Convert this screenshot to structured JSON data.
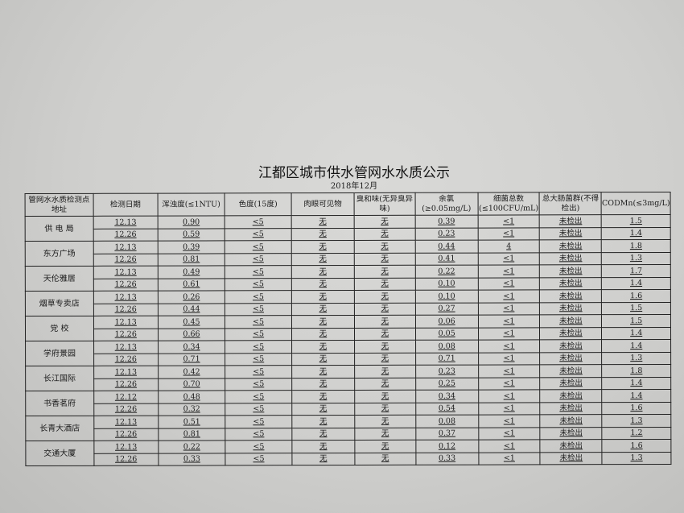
{
  "title": "江都区城市供水管网水水质公示",
  "subtitle": "2018年12月",
  "headers": [
    "管网水水质检测点地址",
    "检测日期",
    "浑浊度(≤1NTU)",
    "色度(15度)",
    "肉眼可见物",
    "臭和味(无异臭异味)",
    "余氯(≥0.05mg/L)",
    "细菌总数(≤100CFU/mL)",
    "总大肠菌群(不得检出)",
    "CODMn(≤3mg/L)"
  ],
  "sites": [
    {
      "name": "供 电 局",
      "rows": [
        [
          "12.13",
          "0.90",
          "<5",
          "无",
          "无",
          "0.39",
          "<1",
          "未检出",
          "1.5"
        ],
        [
          "12.26",
          "0.59",
          "<5",
          "无",
          "无",
          "0.23",
          "<1",
          "未检出",
          "1.4"
        ]
      ]
    },
    {
      "name": "东方广场",
      "rows": [
        [
          "12.13",
          "0.39",
          "<5",
          "无",
          "无",
          "0.44",
          "4",
          "未检出",
          "1.8"
        ],
        [
          "12.26",
          "0.81",
          "<5",
          "无",
          "无",
          "0.41",
          "<1",
          "未检出",
          "1.3"
        ]
      ]
    },
    {
      "name": "天伦雅居",
      "rows": [
        [
          "12.13",
          "0.49",
          "<5",
          "无",
          "无",
          "0.22",
          "<1",
          "未检出",
          "1.7"
        ],
        [
          "12.26",
          "0.61",
          "<5",
          "无",
          "无",
          "0.10",
          "<1",
          "未检出",
          "1.4"
        ]
      ]
    },
    {
      "name": "烟草专卖店",
      "rows": [
        [
          "12.13",
          "0.26",
          "<5",
          "无",
          "无",
          "0.10",
          "<1",
          "未检出",
          "1.6"
        ],
        [
          "12.26",
          "0.44",
          "<5",
          "无",
          "无",
          "0.27",
          "<1",
          "未检出",
          "1.5"
        ]
      ]
    },
    {
      "name": "党  校",
      "rows": [
        [
          "12.13",
          "0.45",
          "<5",
          "无",
          "无",
          "0.06",
          "<1",
          "未检出",
          "1.5"
        ],
        [
          "12.26",
          "0.66",
          "<5",
          "无",
          "无",
          "0.05",
          "<1",
          "未检出",
          "1.4"
        ]
      ]
    },
    {
      "name": "学府景园",
      "rows": [
        [
          "12.13",
          "0.34",
          "<5",
          "无",
          "无",
          "0.08",
          "<1",
          "未检出",
          "1.4"
        ],
        [
          "12.26",
          "0.71",
          "<5",
          "无",
          "无",
          "0.71",
          "<1",
          "未检出",
          "1.3"
        ]
      ]
    },
    {
      "name": "长江国际",
      "rows": [
        [
          "12.13",
          "0.42",
          "<5",
          "无",
          "无",
          "0.23",
          "<1",
          "未检出",
          "1.8"
        ],
        [
          "12.26",
          "0.70",
          "<5",
          "无",
          "无",
          "0.25",
          "<1",
          "未检出",
          "1.4"
        ]
      ]
    },
    {
      "name": "书香茗府",
      "rows": [
        [
          "12.12",
          "0.48",
          "<5",
          "无",
          "无",
          "0.34",
          "<1",
          "未检出",
          "1.4"
        ],
        [
          "12.26",
          "0.32",
          "<5",
          "无",
          "无",
          "0.54",
          "<1",
          "未检出",
          "1.6"
        ]
      ]
    },
    {
      "name": "长青大酒店",
      "rows": [
        [
          "12.13",
          "0.51",
          "<5",
          "无",
          "无",
          "0.08",
          "<1",
          "未检出",
          "1.3"
        ],
        [
          "12.26",
          "0.81",
          "<5",
          "无",
          "无",
          "0.37",
          "<1",
          "未检出",
          "1.2"
        ]
      ]
    },
    {
      "name": "交通大厦",
      "rows": [
        [
          "12.13",
          "0.22",
          "<5",
          "无",
          "无",
          "0.12",
          "<1",
          "未检出",
          "1.6"
        ],
        [
          "12.26",
          "0.33",
          "<5",
          "无",
          "无",
          "0.33",
          "<1",
          "未检出",
          "1.3"
        ]
      ]
    }
  ]
}
